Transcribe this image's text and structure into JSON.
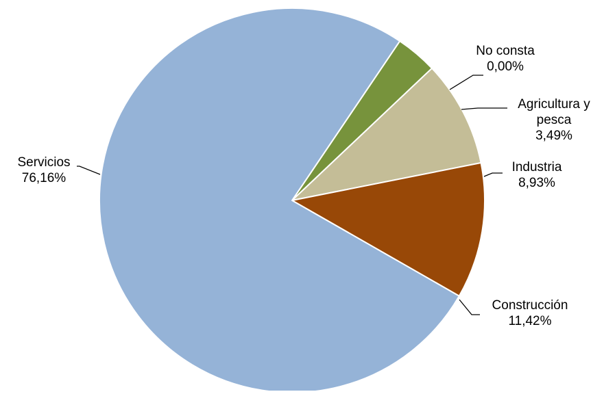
{
  "chart_data": {
    "type": "pie",
    "start_angle_deg": -56,
    "direction": "clockwise",
    "slices": [
      {
        "label_lines": [
          "No consta"
        ],
        "value_label": "0,00%",
        "value": 0.0,
        "color": "#4F81BD"
      },
      {
        "label_lines": [
          "Agricultura y",
          "pesca"
        ],
        "value_label": "3,49%",
        "value": 3.49,
        "color": "#77933C"
      },
      {
        "label_lines": [
          "Industria"
        ],
        "value_label": "8,93%",
        "value": 8.93,
        "color": "#C4BD97"
      },
      {
        "label_lines": [
          "Construcción"
        ],
        "value_label": "11,42%",
        "value": 11.42,
        "color": "#984807"
      },
      {
        "label_lines": [
          "Servicios"
        ],
        "value_label": "76,16%",
        "value": 76.16,
        "color": "#95B3D7"
      }
    ]
  }
}
